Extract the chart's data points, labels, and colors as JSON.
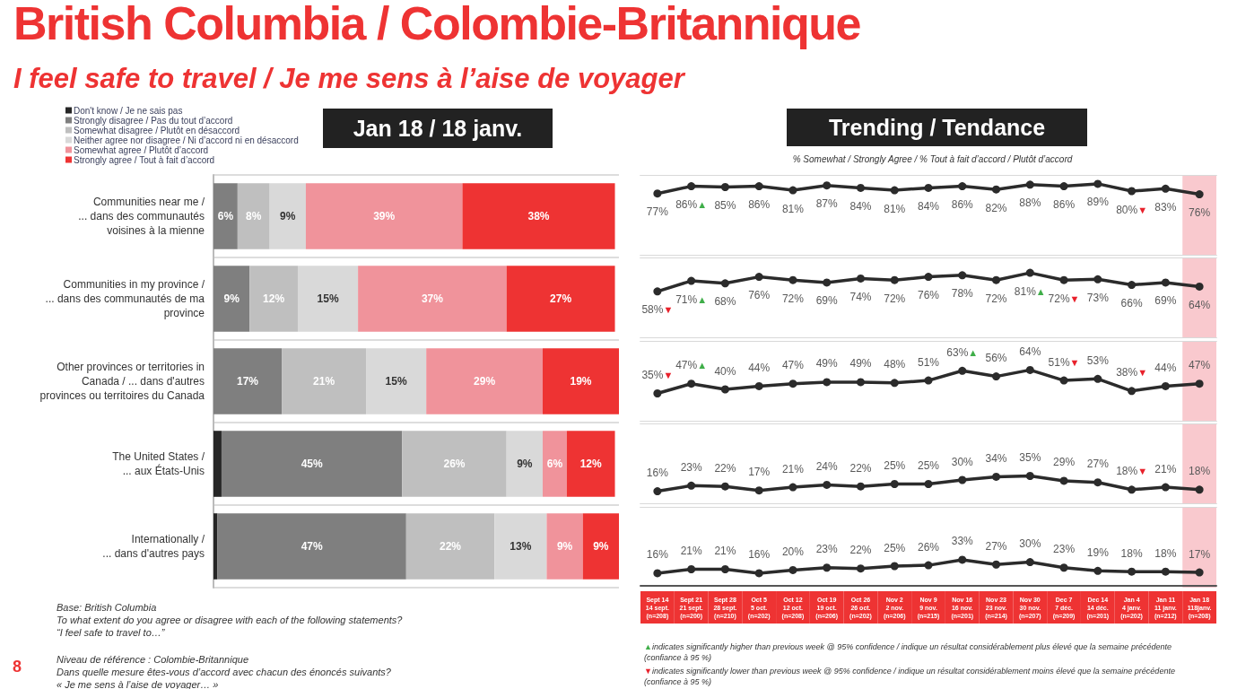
{
  "chart_data": [
    {
      "type": "bar",
      "orientation": "horizontal",
      "stacked": true,
      "title": "British Columbia / Colombie-Britannique",
      "subtitle": "I feel safe to travel / Je me sens à l’aise de voyager",
      "legend": "top left",
      "grid": "y",
      "categories": [
        "Communities near me /\n... dans des communautés\nvoisines à la mienne",
        "Communities in my province /\n... dans des communautés de ma\nprovince",
        "Other provinces or territories in\nCanada / ... dans d'autres\nprovinces ou territoires du Canada",
        "The United States /\n... aux États-Unis",
        "Internationally /\n... dans d'autres pays"
      ],
      "series": [
        {
          "name": "Don't know / Je ne sais pas",
          "color": "#262626",
          "values": [
            0,
            0,
            0,
            2,
            1
          ],
          "value_labels": [
            null,
            null,
            null,
            null,
            null
          ]
        },
        {
          "name": "Strongly disagree / Pas du tout d’accord",
          "color": "#7f7f7f",
          "values": [
            6,
            9,
            17,
            45,
            47
          ],
          "value_labels": [
            "6%",
            "9%",
            "17%",
            "45%",
            "47%"
          ]
        },
        {
          "name": "Somewhat disagree / Plutôt en désaccord",
          "color": "#bfbfbf",
          "values": [
            8,
            12,
            21,
            26,
            22
          ],
          "value_labels": [
            "8%",
            "12%",
            "21%",
            "26%",
            "22%"
          ]
        },
        {
          "name": "Neither agree nor disagree / Ni d’accord ni en désaccord",
          "color": "#d9d9d9",
          "values": [
            9,
            15,
            15,
            9,
            13
          ],
          "value_labels": [
            "9%",
            "15%",
            "15%",
            "9%",
            "13%"
          ]
        },
        {
          "name": "Somewhat agree / Plutôt d’accord",
          "color": "#f0939b",
          "values": [
            39,
            37,
            29,
            6,
            9
          ],
          "value_labels": [
            "39%",
            "37%",
            "29%",
            "6%",
            "9%"
          ]
        },
        {
          "name": "Strongly agree / Tout à fait d’accord",
          "color": "#ee3333",
          "values": [
            38,
            27,
            19,
            12,
            9
          ],
          "value_labels": [
            "38%",
            "27%",
            "19%",
            "12%",
            "9%"
          ]
        }
      ],
      "annotations": [
        "Jan 18 / 18 janv.",
        "Base: British Columbia",
        "To what extent do you agree or disagree with each of the following statements?",
        "“I feel safe to travel to…”",
        "Niveau de référence : Colombie-Britannique",
        "Dans quelle mesure êtes-vous d’accord avec chacun des énoncés suivants?",
        "« Je me sens à l’aise de voyager… »",
        "8"
      ]
    },
    {
      "type": "line",
      "title": "Trending / Tendance",
      "subtitle": "% Somewhat / Strongly Agree / % Tout à fait d’accord / Plutôt d’accord",
      "marker": "circle",
      "tick_labels": false,
      "ylim": [
        0,
        100
      ],
      "categories": [
        "Sept 14\n14 sept.\n(n=208)",
        "Sept 21\n21 sept.\n(n=200)",
        "Sept 28\n28 sept.\n(n=210)",
        "Oct 5\n5 oct.\n(n=202)",
        "Oct 12\n12 oct.\n(n=208)",
        "Oct 19\n19 oct.\n(n=206)",
        "Oct 26\n26 oct.\n(n=202)",
        "Nov 2\n2 nov.\n(n=206)",
        "Nov 9\n9 nov.\n(n=215)",
        "Nov 16\n16 nov.\n(n=201)",
        "Nov 23\n23 nov.\n(n=214)",
        "Nov 30\n30 nov.\n(n=207)",
        "Dec 7\n7 déc.\n(n=209)",
        "Dec 14\n14 déc.\n(n=201)",
        "Jan 4\n4 janv.\n(n=202)",
        "Jan 11\n11 janv.\n(n=212)",
        "Jan 18\n118janv.\n(n=208)"
      ],
      "bands": [
        {
          "axis": "x",
          "from": "Jan 18\n118janv.\n(n=208)",
          "to": "Jan 18\n118janv.\n(n=208)",
          "color": "#f9c9ce"
        }
      ],
      "series": [
        {
          "color": "#2b2b2b",
          "values": [
            77,
            86,
            85,
            86,
            81,
            87,
            84,
            81,
            84,
            86,
            82,
            88,
            86,
            89,
            80,
            83,
            76
          ],
          "value_labels": [
            "77%",
            "86%▲",
            "85%",
            "86%",
            "81%",
            "87%",
            "84%",
            "81%",
            "84%",
            "86%",
            "82%",
            "88%",
            "86%",
            "89%",
            "80%▼",
            "83%",
            "76%"
          ]
        }
      ]
    },
    {
      "type": "line",
      "marker": "circle",
      "tick_labels": false,
      "ylim": [
        0,
        100
      ],
      "categories": [
        "Sept 14\n14 sept.\n(n=208)",
        "Sept 21\n21 sept.\n(n=200)",
        "Sept 28\n28 sept.\n(n=210)",
        "Oct 5\n5 oct.\n(n=202)",
        "Oct 12\n12 oct.\n(n=208)",
        "Oct 19\n19 oct.\n(n=206)",
        "Oct 26\n26 oct.\n(n=202)",
        "Nov 2\n2 nov.\n(n=206)",
        "Nov 9\n9 nov.\n(n=215)",
        "Nov 16\n16 nov.\n(n=201)",
        "Nov 23\n23 nov.\n(n=214)",
        "Nov 30\n30 nov.\n(n=207)",
        "Dec 7\n7 déc.\n(n=209)",
        "Dec 14\n14 déc.\n(n=201)",
        "Jan 4\n4 janv.\n(n=202)",
        "Jan 11\n11 janv.\n(n=212)",
        "Jan 18\n118janv.\n(n=208)"
      ],
      "bands": [
        {
          "axis": "x",
          "from": "Jan 18\n118janv.\n(n=208)",
          "to": "Jan 18\n118janv.\n(n=208)",
          "color": "#f9c9ce"
        }
      ],
      "series": [
        {
          "color": "#2b2b2b",
          "values": [
            58,
            71,
            68,
            76,
            72,
            69,
            74,
            72,
            76,
            78,
            72,
            81,
            72,
            73,
            66,
            69,
            64
          ],
          "value_labels": [
            "58%▼",
            "71%▲",
            "68%",
            "76%",
            "72%",
            "69%",
            "74%",
            "72%",
            "76%",
            "78%",
            "72%",
            "81%▲",
            "72%▼",
            "73%",
            "66%",
            "69%",
            "64%"
          ]
        }
      ]
    },
    {
      "type": "line",
      "marker": "circle",
      "tick_labels": false,
      "ylim": [
        0,
        100
      ],
      "categories": [
        "Sept 14\n14 sept.\n(n=208)",
        "Sept 21\n21 sept.\n(n=200)",
        "Sept 28\n28 sept.\n(n=210)",
        "Oct 5\n5 oct.\n(n=202)",
        "Oct 12\n12 oct.\n(n=208)",
        "Oct 19\n19 oct.\n(n=206)",
        "Oct 26\n26 oct.\n(n=202)",
        "Nov 2\n2 nov.\n(n=206)",
        "Nov 9\n9 nov.\n(n=215)",
        "Nov 16\n16 nov.\n(n=201)",
        "Nov 23\n23 nov.\n(n=214)",
        "Nov 30\n30 nov.\n(n=207)",
        "Dec 7\n7 déc.\n(n=209)",
        "Dec 14\n14 déc.\n(n=201)",
        "Jan 4\n4 janv.\n(n=202)",
        "Jan 11\n11 janv.\n(n=212)",
        "Jan 18\n118janv.\n(n=208)"
      ],
      "bands": [
        {
          "axis": "x",
          "from": "Jan 18\n118janv.\n(n=208)",
          "to": "Jan 18\n118janv.\n(n=208)",
          "color": "#f9c9ce"
        }
      ],
      "series": [
        {
          "color": "#2b2b2b",
          "values": [
            35,
            47,
            40,
            44,
            47,
            49,
            49,
            48,
            51,
            63,
            56,
            64,
            51,
            53,
            38,
            44,
            47
          ],
          "value_labels": [
            "35%▼",
            "47%▲",
            "40%",
            "44%",
            "47%",
            "49%",
            "49%",
            "48%",
            "51%",
            "63%▲",
            "56%",
            "64%",
            "51%▼",
            "53%",
            "38%▼",
            "44%",
            "47%"
          ]
        }
      ]
    },
    {
      "type": "line",
      "marker": "circle",
      "tick_labels": false,
      "ylim": [
        0,
        100
      ],
      "categories": [
        "Sept 14\n14 sept.\n(n=208)",
        "Sept 21\n21 sept.\n(n=200)",
        "Sept 28\n28 sept.\n(n=210)",
        "Oct 5\n5 oct.\n(n=202)",
        "Oct 12\n12 oct.\n(n=208)",
        "Oct 19\n19 oct.\n(n=206)",
        "Oct 26\n26 oct.\n(n=202)",
        "Nov 2\n2 nov.\n(n=206)",
        "Nov 9\n9 nov.\n(n=215)",
        "Nov 16\n16 nov.\n(n=201)",
        "Nov 23\n23 nov.\n(n=214)",
        "Nov 30\n30 nov.\n(n=207)",
        "Dec 7\n7 déc.\n(n=209)",
        "Dec 14\n14 déc.\n(n=201)",
        "Jan 4\n4 janv.\n(n=202)",
        "Jan 11\n11 janv.\n(n=212)",
        "Jan 18\n118janv.\n(n=208)"
      ],
      "bands": [
        {
          "axis": "x",
          "from": "Jan 18\n118janv.\n(n=208)",
          "to": "Jan 18\n118janv.\n(n=208)",
          "color": "#f9c9ce"
        }
      ],
      "series": [
        {
          "color": "#2b2b2b",
          "values": [
            16,
            23,
            22,
            17,
            21,
            24,
            22,
            25,
            25,
            30,
            34,
            35,
            29,
            27,
            18,
            21,
            18
          ],
          "value_labels": [
            "16%",
            "23%",
            "22%",
            "17%",
            "21%",
            "24%",
            "22%",
            "25%",
            "25%",
            "30%",
            "34%",
            "35%",
            "29%",
            "27%",
            "18%▼",
            "21%",
            "18%"
          ]
        }
      ]
    },
    {
      "type": "line",
      "marker": "circle",
      "tick_labels": "x",
      "ylim": [
        0,
        100
      ],
      "categories": [
        "Sept 14\n14 sept.\n(n=208)",
        "Sept 21\n21 sept.\n(n=200)",
        "Sept 28\n28 sept.\n(n=210)",
        "Oct 5\n5 oct.\n(n=202)",
        "Oct 12\n12 oct.\n(n=208)",
        "Oct 19\n19 oct.\n(n=206)",
        "Oct 26\n26 oct.\n(n=202)",
        "Nov 2\n2 nov.\n(n=206)",
        "Nov 9\n9 nov.\n(n=215)",
        "Nov 16\n16 nov.\n(n=201)",
        "Nov 23\n23 nov.\n(n=214)",
        "Nov 30\n30 nov.\n(n=207)",
        "Dec 7\n7 déc.\n(n=209)",
        "Dec 14\n14 déc.\n(n=201)",
        "Jan 4\n4 janv.\n(n=202)",
        "Jan 11\n11 janv.\n(n=212)",
        "Jan 18\n118janv.\n(n=208)"
      ],
      "bands": [
        {
          "axis": "x",
          "from": "Jan 18\n118janv.\n(n=208)",
          "to": "Jan 18\n118janv.\n(n=208)",
          "color": "#f9c9ce"
        }
      ],
      "series": [
        {
          "color": "#2b2b2b",
          "values": [
            16,
            21,
            21,
            16,
            20,
            23,
            22,
            25,
            26,
            33,
            27,
            30,
            23,
            19,
            18,
            18,
            17
          ],
          "value_labels": [
            "16%",
            "21%",
            "21%",
            "16%",
            "20%",
            "23%",
            "22%",
            "25%",
            "26%",
            "33%",
            "27%",
            "30%",
            "23%",
            "19%",
            "18%",
            "18%",
            "17%"
          ]
        }
      ],
      "annotations": [
        "▲indicates significantly higher than previous week @ 95% confidence / indique un résultat considérablement plus élevé que la semaine précédente (confiance à 95 %)",
        "▼indicates significantly lower than previous week @ 95% confidence / indique un résultat considérablement moins élevé que la semaine précédente (confiance à 95 %)"
      ]
    }
  ]
}
